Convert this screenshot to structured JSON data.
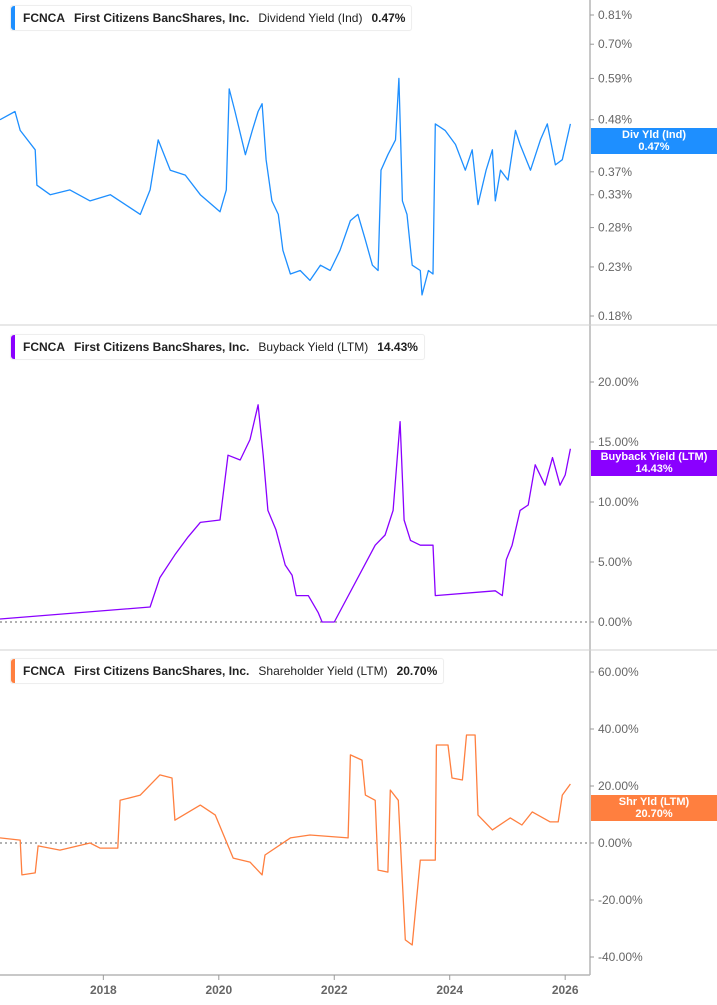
{
  "chart_data": [
    {
      "type": "line",
      "legend": {
        "ticker": "FCNCA",
        "company": "First Citizens BancShares, Inc.",
        "metric": "Dividend Yield (Ind)",
        "value": "0.47%"
      },
      "tag": {
        "label": "Div Yld (Ind)",
        "value": "0.47%"
      },
      "color": "#1e8fff",
      "yscale": "log",
      "ylim": [
        0.18,
        0.81
      ],
      "yticks": [
        "0.81%",
        "0.70%",
        "0.59%",
        "0.48%",
        "0.37%",
        "0.33%",
        "0.28%",
        "0.23%",
        "0.18%"
      ],
      "ytick_values": [
        0.81,
        0.7,
        0.59,
        0.48,
        0.37,
        0.33,
        0.28,
        0.23,
        0.18
      ],
      "points": [
        [
          2016.21,
          0.48
        ],
        [
          2016.47,
          0.5
        ],
        [
          2016.56,
          0.455
        ],
        [
          2016.82,
          0.413
        ],
        [
          2016.85,
          0.346
        ],
        [
          2017.08,
          0.33
        ],
        [
          2017.42,
          0.338
        ],
        [
          2017.77,
          0.32
        ],
        [
          2018.12,
          0.33
        ],
        [
          2018.38,
          0.314
        ],
        [
          2018.64,
          0.299
        ],
        [
          2018.81,
          0.338
        ],
        [
          2018.95,
          0.434
        ],
        [
          2019.16,
          0.373
        ],
        [
          2019.42,
          0.364
        ],
        [
          2019.68,
          0.33
        ],
        [
          2020.02,
          0.303
        ],
        [
          2020.13,
          0.338
        ],
        [
          2020.18,
          0.56
        ],
        [
          2020.28,
          0.5
        ],
        [
          2020.46,
          0.403
        ],
        [
          2020.58,
          0.455
        ],
        [
          2020.68,
          0.5
        ],
        [
          2020.75,
          0.52
        ],
        [
          2020.82,
          0.393
        ],
        [
          2020.92,
          0.32
        ],
        [
          2021.03,
          0.299
        ],
        [
          2021.11,
          0.25
        ],
        [
          2021.24,
          0.222
        ],
        [
          2021.41,
          0.226
        ],
        [
          2021.58,
          0.215
        ],
        [
          2021.76,
          0.232
        ],
        [
          2021.93,
          0.226
        ],
        [
          2022.1,
          0.25
        ],
        [
          2022.28,
          0.29
        ],
        [
          2022.41,
          0.299
        ],
        [
          2022.54,
          0.263
        ],
        [
          2022.66,
          0.232
        ],
        [
          2022.76,
          0.226
        ],
        [
          2022.81,
          0.373
        ],
        [
          2022.93,
          0.403
        ],
        [
          2023.06,
          0.434
        ],
        [
          2023.12,
          0.59
        ],
        [
          2023.18,
          0.32
        ],
        [
          2023.26,
          0.299
        ],
        [
          2023.35,
          0.232
        ],
        [
          2023.49,
          0.226
        ],
        [
          2023.52,
          0.2
        ],
        [
          2023.63,
          0.226
        ],
        [
          2023.71,
          0.222
        ],
        [
          2023.75,
          0.47
        ],
        [
          2023.92,
          0.455
        ],
        [
          2024.1,
          0.424
        ],
        [
          2024.27,
          0.373
        ],
        [
          2024.39,
          0.413
        ],
        [
          2024.49,
          0.314
        ],
        [
          2024.63,
          0.373
        ],
        [
          2024.74,
          0.413
        ],
        [
          2024.79,
          0.32
        ],
        [
          2024.88,
          0.373
        ],
        [
          2025.01,
          0.355
        ],
        [
          2025.14,
          0.455
        ],
        [
          2025.22,
          0.424
        ],
        [
          2025.4,
          0.373
        ],
        [
          2025.57,
          0.434
        ],
        [
          2025.69,
          0.47
        ],
        [
          2025.83,
          0.383
        ],
        [
          2025.95,
          0.393
        ],
        [
          2026.09,
          0.47
        ]
      ]
    },
    {
      "type": "line",
      "legend": {
        "ticker": "FCNCA",
        "company": "First Citizens BancShares, Inc.",
        "metric": "Buyback Yield (LTM)",
        "value": "14.43%"
      },
      "tag": {
        "label": "Buyback Yield (LTM)",
        "value": "14.43%"
      },
      "color": "#8a00ff",
      "yscale": "linear",
      "ylim": [
        -0.25,
        25
      ],
      "yticks": [
        "20.00%",
        "15.00%",
        "10.00%",
        "5.00%",
        "0.00%"
      ],
      "ytick_values": [
        20,
        15,
        10,
        5,
        0
      ],
      "zero_line": true,
      "points": [
        [
          2016.21,
          0.25
        ],
        [
          2018.81,
          1.25
        ],
        [
          2018.98,
          3.7
        ],
        [
          2019.24,
          5.6
        ],
        [
          2019.47,
          7.1
        ],
        [
          2019.68,
          8.3
        ],
        [
          2020.02,
          8.5
        ],
        [
          2020.16,
          13.9
        ],
        [
          2020.37,
          13.5
        ],
        [
          2020.54,
          15.2
        ],
        [
          2020.68,
          18.1
        ],
        [
          2020.77,
          13.9
        ],
        [
          2020.85,
          9.3
        ],
        [
          2020.99,
          7.7
        ],
        [
          2021.15,
          4.75
        ],
        [
          2021.27,
          3.9
        ],
        [
          2021.34,
          2.2
        ],
        [
          2021.55,
          2.2
        ],
        [
          2021.72,
          0.8
        ],
        [
          2021.79,
          0
        ],
        [
          2022.0,
          0
        ],
        [
          2022.71,
          6.4
        ],
        [
          2022.88,
          7.25
        ],
        [
          2023.02,
          9.3
        ],
        [
          2023.14,
          16.7
        ],
        [
          2023.21,
          8.5
        ],
        [
          2023.32,
          6.8
        ],
        [
          2023.49,
          6.4
        ],
        [
          2023.71,
          6.4
        ],
        [
          2023.75,
          2.2
        ],
        [
          2024.79,
          2.6
        ],
        [
          2024.91,
          2.2
        ],
        [
          2024.98,
          5.2
        ],
        [
          2025.08,
          6.4
        ],
        [
          2025.22,
          9.3
        ],
        [
          2025.36,
          9.75
        ],
        [
          2025.48,
          13.1
        ],
        [
          2025.65,
          11.4
        ],
        [
          2025.78,
          13.7
        ],
        [
          2025.91,
          11.4
        ],
        [
          2026.0,
          12.25
        ],
        [
          2026.09,
          14.43
        ]
      ]
    },
    {
      "type": "line",
      "legend": {
        "ticker": "FCNCA",
        "company": "First Citizens BancShares, Inc.",
        "metric": "Shareholder Yield (LTM)",
        "value": "20.70%"
      },
      "tag": {
        "label": "Shr Yld (LTM)",
        "value": "20.70%"
      },
      "color": "#ff7f3f",
      "yscale": "linear",
      "ylim": [
        -45,
        65
      ],
      "yticks": [
        "60.00%",
        "40.00%",
        "20.00%",
        "0.00%",
        "-20.00%",
        "-40.00%"
      ],
      "ytick_values": [
        60,
        40,
        20,
        0,
        -20,
        -40
      ],
      "zero_line": true,
      "points": [
        [
          2016.21,
          1.8
        ],
        [
          2016.56,
          1
        ],
        [
          2016.59,
          -11.2
        ],
        [
          2016.82,
          -10.5
        ],
        [
          2016.87,
          -1
        ],
        [
          2017.25,
          -2.5
        ],
        [
          2017.77,
          0
        ],
        [
          2017.94,
          -1.8
        ],
        [
          2018.25,
          -1.8
        ],
        [
          2018.29,
          15
        ],
        [
          2018.64,
          16.8
        ],
        [
          2018.98,
          23.9
        ],
        [
          2019.19,
          22.8
        ],
        [
          2019.24,
          8
        ],
        [
          2019.68,
          13.3
        ],
        [
          2019.94,
          9.8
        ],
        [
          2020.25,
          -5.3
        ],
        [
          2020.54,
          -6.7
        ],
        [
          2020.75,
          -11.2
        ],
        [
          2020.8,
          -4.2
        ],
        [
          2021.24,
          1.8
        ],
        [
          2021.58,
          2.8
        ],
        [
          2022.24,
          1.8
        ],
        [
          2022.28,
          30.9
        ],
        [
          2022.48,
          29.1
        ],
        [
          2022.54,
          16.8
        ],
        [
          2022.71,
          15
        ],
        [
          2022.76,
          -9.5
        ],
        [
          2022.93,
          -10.2
        ],
        [
          2022.97,
          18.6
        ],
        [
          2023.11,
          15
        ],
        [
          2023.23,
          -34
        ],
        [
          2023.35,
          -35.8
        ],
        [
          2023.49,
          -6
        ],
        [
          2023.75,
          -6
        ],
        [
          2023.77,
          34.4
        ],
        [
          2023.97,
          34.4
        ],
        [
          2024.04,
          22.8
        ],
        [
          2024.22,
          22.1
        ],
        [
          2024.29,
          37.9
        ],
        [
          2024.44,
          37.9
        ],
        [
          2024.49,
          9.8
        ],
        [
          2024.74,
          4.6
        ],
        [
          2025.05,
          8.8
        ],
        [
          2025.25,
          6.3
        ],
        [
          2025.43,
          10.9
        ],
        [
          2025.74,
          7.4
        ],
        [
          2025.88,
          7.4
        ],
        [
          2025.95,
          16.8
        ],
        [
          2026.09,
          20.7
        ]
      ]
    }
  ],
  "xaxis": {
    "xlim": [
      2016.21,
      2026.43
    ],
    "ticks": [
      "2018",
      "2020",
      "2022",
      "2024",
      "2026"
    ],
    "tick_values": [
      2018,
      2020,
      2022,
      2024,
      2026
    ]
  }
}
